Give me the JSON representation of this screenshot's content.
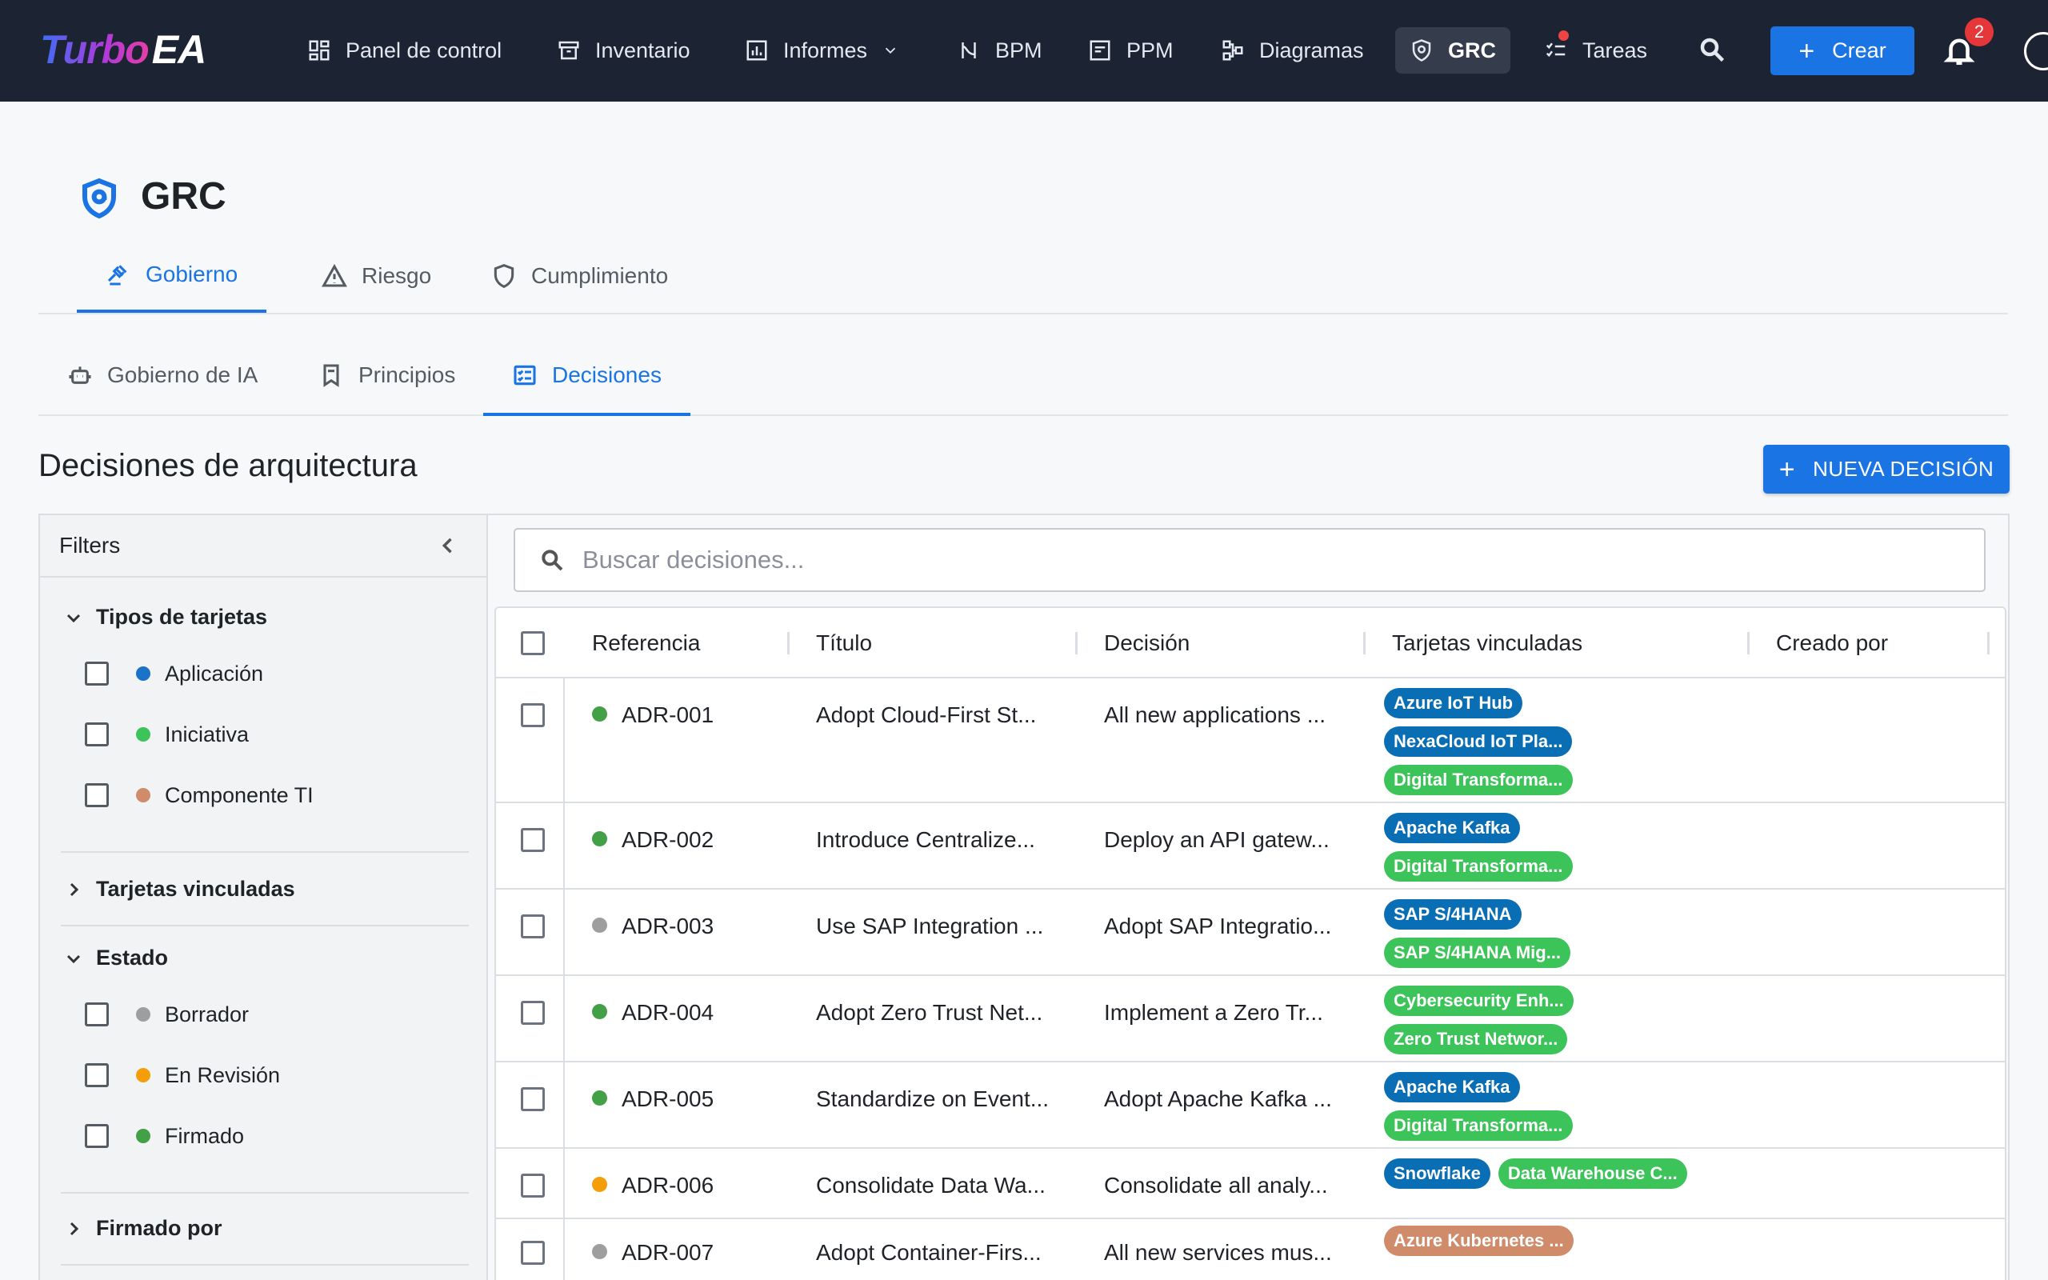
{
  "brand": {
    "part1": "Turbo",
    "part2": "EA"
  },
  "nav": {
    "items": [
      {
        "label": "Panel de control",
        "icon": "dashboard-icon"
      },
      {
        "label": "Inventario",
        "icon": "inventory-icon"
      },
      {
        "label": "Informes",
        "icon": "reports-icon"
      },
      {
        "label": "BPM",
        "icon": "bpm-icon"
      },
      {
        "label": "PPM",
        "icon": "ppm-icon"
      },
      {
        "label": "Diagramas",
        "icon": "diagram-icon"
      },
      {
        "label": "GRC",
        "icon": "shield-icon"
      },
      {
        "label": "Tareas",
        "icon": "tasks-icon"
      }
    ],
    "create_label": "Crear",
    "notifications_count": "2"
  },
  "page": {
    "title": "GRC",
    "tabs": [
      {
        "label": "Gobierno"
      },
      {
        "label": "Riesgo"
      },
      {
        "label": "Cumplimiento"
      }
    ],
    "subtabs": [
      {
        "label": "Gobierno de IA"
      },
      {
        "label": "Principios"
      },
      {
        "label": "Decisiones"
      }
    ],
    "section_title": "Decisiones de arquitectura",
    "new_button": "NUEVA DECISIÓN"
  },
  "filters": {
    "title": "Filters",
    "groups": {
      "card_types": {
        "label": "Tipos de tarjetas",
        "options": [
          {
            "label": "Aplicación",
            "color": "#1a73c8"
          },
          {
            "label": "Iniciativa",
            "color": "#3cc45a"
          },
          {
            "label": "Componente TI",
            "color": "#d08b6a"
          }
        ]
      },
      "linked_cards": {
        "label": "Tarjetas vinculadas"
      },
      "status": {
        "label": "Estado",
        "options": [
          {
            "label": "Borrador",
            "color": "#9e9e9e"
          },
          {
            "label": "En Revisión",
            "color": "#f59e0b"
          },
          {
            "label": "Firmado",
            "color": "#43a047"
          }
        ]
      },
      "signed_by": {
        "label": "Firmado por"
      }
    }
  },
  "search": {
    "placeholder": "Buscar decisiones..."
  },
  "table": {
    "columns": [
      "Referencia",
      "Título",
      "Decisión",
      "Tarjetas vinculadas",
      "Creado por"
    ],
    "rows": [
      {
        "ref": "ADR-001",
        "status_color": "#43a047",
        "title": "Adopt Cloud-First St...",
        "decision": "All new applications ...",
        "chips": [
          {
            "label": "Azure IoT Hub",
            "color": "#0a6eb4"
          },
          {
            "label": "NexaCloud IoT Pla...",
            "color": "#0a6eb4"
          },
          {
            "label": "Digital Transforma...",
            "color": "#3cc45a"
          }
        ]
      },
      {
        "ref": "ADR-002",
        "status_color": "#43a047",
        "title": "Introduce Centralize...",
        "decision": "Deploy an API gatew...",
        "chips": [
          {
            "label": "Apache Kafka",
            "color": "#0a6eb4"
          },
          {
            "label": "Digital Transforma...",
            "color": "#3cc45a"
          }
        ]
      },
      {
        "ref": "ADR-003",
        "status_color": "#9e9e9e",
        "title": "Use SAP Integration ...",
        "decision": "Adopt SAP Integratio...",
        "chips": [
          {
            "label": "SAP S/4HANA",
            "color": "#0a6eb4"
          },
          {
            "label": "SAP S/4HANA Mig...",
            "color": "#3cc45a"
          }
        ]
      },
      {
        "ref": "ADR-004",
        "status_color": "#43a047",
        "title": "Adopt Zero Trust Net...",
        "decision": "Implement a Zero Tr...",
        "chips": [
          {
            "label": "Cybersecurity Enh...",
            "color": "#3cc45a"
          },
          {
            "label": "Zero Trust Networ...",
            "color": "#3cc45a"
          }
        ]
      },
      {
        "ref": "ADR-005",
        "status_color": "#43a047",
        "title": "Standardize on Event...",
        "decision": "Adopt Apache Kafka ...",
        "chips": [
          {
            "label": "Apache Kafka",
            "color": "#0a6eb4"
          },
          {
            "label": "Digital Transforma...",
            "color": "#3cc45a"
          }
        ]
      },
      {
        "ref": "ADR-006",
        "status_color": "#f59e0b",
        "title": "Consolidate Data Wa...",
        "decision": "Consolidate all analy...",
        "chips": [
          {
            "label": "Snowflake",
            "color": "#0a6eb4"
          },
          {
            "label": "Data Warehouse C...",
            "color": "#3cc45a"
          }
        ]
      },
      {
        "ref": "ADR-007",
        "status_color": "#9e9e9e",
        "title": "Adopt Container-Firs...",
        "decision": "All new services mus...",
        "chips": [
          {
            "label": "Azure Kubernetes ...",
            "color": "#d08b6a"
          }
        ]
      }
    ]
  }
}
